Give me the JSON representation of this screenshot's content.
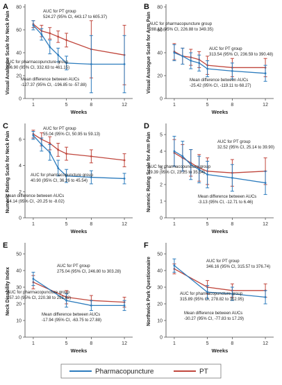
{
  "colors": {
    "pharmacopuncture": "#2b7bbd",
    "pt": "#c0463c",
    "axis": "#444444"
  },
  "legend": {
    "items": [
      "Pharmacopuncture",
      "PT"
    ],
    "placement": "bottom-center"
  },
  "chart_data": [
    {
      "type": "line",
      "panel_letter": "A",
      "ylabel": "Visual Analogue Scale for Neck Pain",
      "xlabel": "Weeks",
      "x_ticks": [
        1,
        5,
        8,
        12
      ],
      "y_ticks": [
        0,
        20,
        40,
        60,
        80
      ],
      "ylim": [
        0,
        80
      ],
      "xlim": [
        0,
        13
      ],
      "series": [
        {
          "name": "Pharmacopuncture",
          "x": [
            1,
            2,
            3,
            4,
            5,
            8,
            12
          ],
          "values": [
            64,
            56,
            45,
            38,
            31,
            30,
            30
          ],
          "ci": [
            4,
            5,
            6,
            6,
            6,
            25,
            25
          ]
        },
        {
          "name": "PT",
          "x": [
            1,
            2,
            3,
            4,
            5,
            8,
            12
          ],
          "values": [
            65,
            59,
            57,
            54,
            51,
            43,
            38
          ],
          "ci": [
            3,
            5,
            5,
            5,
            6,
            25,
            26
          ]
        }
      ],
      "annotations": [
        {
          "lines": [
            "AUC for PT group",
            "524.27 (95% CI, 443.17 to 605.37)"
          ],
          "pos": [
            62,
            18
          ],
          "anchor": "start"
        },
        {
          "lines": [
            "AUC for pharmacopuncture group",
            "396.90 (95% CI, 332.63 to 461.15)"
          ],
          "pos": [
            8,
            91
          ],
          "anchor": "start"
        },
        {
          "lines": [
            "Mean difference between AUCs",
            "-127.37 (95% CI, -196.85 to -57.88)"
          ],
          "pos": [
            30,
            116
          ],
          "anchor": "start"
        }
      ]
    },
    {
      "type": "line",
      "panel_letter": "B",
      "ylabel": "Visual Analogue Scale for Arm Pain",
      "xlabel": "Weeks",
      "x_ticks": [
        1,
        5,
        8,
        12
      ],
      "y_ticks": [
        0,
        20,
        40,
        60,
        80
      ],
      "ylim": [
        0,
        80
      ],
      "xlim": [
        0,
        13
      ],
      "series": [
        {
          "name": "Pharmacopuncture",
          "x": [
            1,
            2,
            3,
            4,
            5,
            8,
            12
          ],
          "values": [
            40,
            37,
            33,
            31,
            26,
            24,
            22
          ],
          "ci": [
            7,
            7,
            7,
            7,
            7,
            7,
            7
          ]
        },
        {
          "name": "PT",
          "x": [
            1,
            2,
            3,
            4,
            5,
            8,
            12
          ],
          "values": [
            41,
            37,
            36,
            34,
            29,
            27,
            27
          ],
          "ci": [
            7,
            7,
            7,
            7,
            8,
            8,
            8
          ]
        }
      ],
      "annotations": [
        {
          "lines": [
            "AUC for pharmacopuncture group",
            "288.12 (95% CI, 226.88 to 349.35)"
          ],
          "pos": [
            12,
            36
          ],
          "anchor": "start"
        },
        {
          "lines": [
            "AUC for PT group",
            "313.54 (95% CI, 236.59 to 390.48)"
          ],
          "pos": [
            98,
            72
          ],
          "anchor": "start"
        },
        {
          "lines": [
            "Mean difference between AUCs",
            "-25.42 (95% CI, -119.11 to 68.27)"
          ],
          "pos": [
            70,
            117
          ],
          "anchor": "start"
        }
      ]
    },
    {
      "type": "line",
      "panel_letter": "C",
      "ylabel": "Numeric Rating Scale for Neck Pain",
      "xlabel": "Weeks",
      "x_ticks": [
        1,
        5,
        8,
        12
      ],
      "y_ticks": [
        0,
        2,
        4,
        6
      ],
      "ylim": [
        0,
        7
      ],
      "xlim": [
        0,
        13
      ],
      "series": [
        {
          "name": "Pharmacopuncture",
          "x": [
            1,
            2,
            3,
            4,
            5,
            8,
            12
          ],
          "values": [
            6.3,
            5.6,
            5.0,
            3.8,
            3.2,
            3.1,
            3.0
          ],
          "ci": [
            0.3,
            0.5,
            0.6,
            0.6,
            0.5,
            0.5,
            0.4
          ]
        },
        {
          "name": "PT",
          "x": [
            1,
            2,
            3,
            4,
            5,
            8,
            12
          ],
          "values": [
            6.4,
            6.0,
            5.7,
            5.2,
            4.9,
            4.7,
            4.4
          ],
          "ci": [
            0.3,
            0.5,
            0.5,
            0.5,
            0.5,
            0.5,
            0.5
          ]
        }
      ],
      "annotations": [
        {
          "lines": [
            "AUC for PT group",
            "55.04 (95% CI, 50.95 to 59.13)"
          ],
          "pos": [
            62,
            15
          ],
          "anchor": "start"
        },
        {
          "lines": [
            "AUC for pharmacopuncture group",
            "40.90 (95% CI, 36.26 to 45.54)"
          ],
          "pos": [
            44,
            82
          ],
          "anchor": "start"
        },
        {
          "lines": [
            "Mean difference between AUCs",
            "-14.14 (95% CI, -20.25 to -8.02)"
          ],
          "pos": [
            8,
            112
          ],
          "anchor": "start"
        }
      ]
    },
    {
      "type": "line",
      "panel_letter": "D",
      "ylabel": "Numeric Rating Scale for Arm Pain",
      "xlabel": "Weeks",
      "x_ticks": [
        1,
        5,
        8,
        12
      ],
      "y_ticks": [
        0,
        1,
        2,
        3,
        4,
        5
      ],
      "ylim": [
        0,
        5.5
      ],
      "xlim": [
        0,
        13
      ],
      "series": [
        {
          "name": "Pharmacopuncture",
          "x": [
            1,
            2,
            3,
            4,
            5,
            8,
            12
          ],
          "values": [
            4.0,
            3.7,
            3.2,
            2.9,
            2.6,
            2.4,
            2.1
          ],
          "ci": [
            0.9,
            0.9,
            0.9,
            0.8,
            0.8,
            0.8,
            0.7
          ]
        },
        {
          "name": "PT",
          "x": [
            1,
            2,
            3,
            4,
            5,
            8,
            12
          ],
          "values": [
            3.9,
            3.6,
            3.3,
            3.0,
            2.8,
            2.7,
            2.8
          ],
          "ci": [
            0.8,
            0.8,
            0.8,
            0.8,
            0.8,
            0.8,
            0.8
          ]
        }
      ],
      "annotations": [
        {
          "lines": [
            "AUC for PT group",
            "32.52 (95% CI, 25.14 to 39.90)"
          ],
          "pos": [
            110,
            34
          ],
          "anchor": "start"
        },
        {
          "lines": [
            "AUC for pharmacopuncture group",
            "29.39 (95% CI, 23.25 to 35.54)"
          ],
          "pos": [
            10,
            70
          ],
          "anchor": "start"
        },
        {
          "lines": [
            "Mean difference between AUCs",
            "-3.13 (95% CI, -12.71 to 6.46)"
          ],
          "pos": [
            82,
            113
          ],
          "anchor": "start"
        }
      ]
    },
    {
      "type": "line",
      "panel_letter": "E",
      "ylabel": "Neck Disability Index",
      "xlabel": "Weeks",
      "x_ticks": [
        1,
        5,
        8,
        12
      ],
      "y_ticks": [
        0,
        10,
        20,
        30,
        40,
        50
      ],
      "ylim": [
        0,
        55
      ],
      "xlim": [
        0,
        13
      ],
      "series": [
        {
          "name": "Pharmacopuncture",
          "x": [
            1,
            5,
            8,
            12
          ],
          "values": [
            35,
            22,
            19,
            19
          ],
          "ci": [
            4,
            4,
            3,
            3
          ]
        },
        {
          "name": "PT",
          "x": [
            1,
            5,
            8,
            12
          ],
          "values": [
            33,
            24,
            22,
            21
          ],
          "ci": [
            4,
            4,
            3,
            3
          ]
        }
      ],
      "annotations": [
        {
          "lines": [
            "AUC for PT group",
            "275.04 (95% CI, 246.80 to 303.28)"
          ],
          "pos": [
            82,
            41
          ],
          "anchor": "start"
        },
        {
          "lines": [
            "AUC for pharmacopuncture group",
            "257.10 (95% CI, 220.38 to 293.82)"
          ],
          "pos": [
            10,
            79
          ],
          "anchor": "start"
        },
        {
          "lines": [
            "Mean difference between AUCs",
            "-17.94 (95% CI, -63.75 to 27.88)"
          ],
          "pos": [
            60,
            111
          ],
          "anchor": "start"
        }
      ]
    },
    {
      "type": "line",
      "panel_letter": "F",
      "ylabel": "Northwick Park Questionnaire",
      "xlabel": "Weeks",
      "x_ticks": [
        1,
        5,
        8,
        12
      ],
      "y_ticks": [
        0,
        10,
        20,
        30,
        40,
        50
      ],
      "ylim": [
        0,
        55
      ],
      "xlim": [
        0,
        13
      ],
      "series": [
        {
          "name": "Pharmacopuncture",
          "x": [
            1,
            5,
            8,
            12
          ],
          "values": [
            43,
            27,
            26,
            24
          ],
          "ci": [
            4,
            4,
            4,
            4
          ]
        },
        {
          "name": "PT",
          "x": [
            1,
            5,
            8,
            12
          ],
          "values": [
            41,
            30,
            28,
            28
          ],
          "ci": [
            3,
            4,
            4,
            4
          ]
        }
      ],
      "annotations": [
        {
          "lines": [
            "AUC for PT group",
            "346.16 (95% CI, 315.57 to 376.74)"
          ],
          "pos": [
            94,
            34
          ],
          "anchor": "start"
        },
        {
          "lines": [
            "AUC for pharmacopuncture group",
            "315.89 (95% CI, 278.82 to 352.95)"
          ],
          "pos": [
            56,
            81
          ],
          "anchor": "start"
        },
        {
          "lines": [
            "Mean difference between AUCs",
            "-30.27 (95% CI, -77.83 to 17.29)"
          ],
          "pos": [
            62,
            109
          ],
          "anchor": "start"
        }
      ]
    }
  ]
}
